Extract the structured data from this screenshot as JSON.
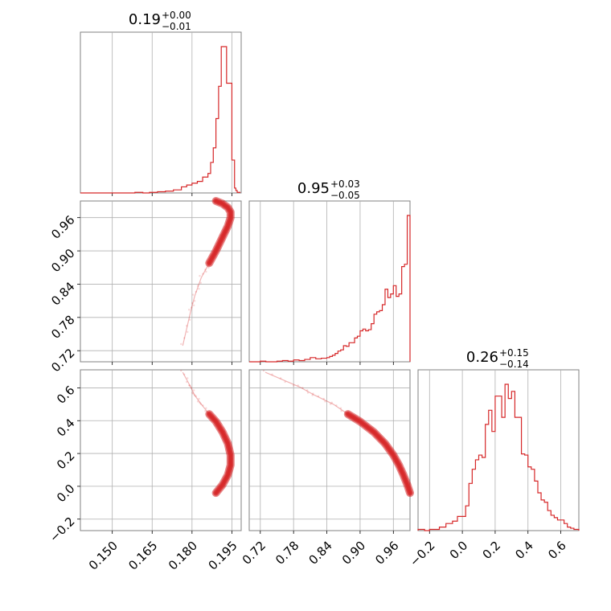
{
  "chart_data": {
    "type": "corner",
    "color": "#d62728",
    "parameters": [
      {
        "index": 0,
        "range": [
          0.138,
          0.1985
        ],
        "ticks": [
          0.15,
          0.165,
          0.18,
          0.195
        ],
        "tick_labels": [
          "0.150",
          "0.165",
          "0.180",
          "0.195"
        ],
        "title": {
          "value": "0.19",
          "plus": "+0.00",
          "minus": "−0.01"
        }
      },
      {
        "index": 1,
        "range": [
          0.7,
          0.99
        ],
        "ticks": [
          0.72,
          0.78,
          0.84,
          0.9,
          0.96
        ],
        "tick_labels": [
          "0.72",
          "0.78",
          "0.84",
          "0.90",
          "0.96"
        ],
        "title": {
          "value": "0.95",
          "plus": "+0.03",
          "minus": "−0.05"
        }
      },
      {
        "index": 2,
        "range": [
          -0.27,
          0.71
        ],
        "ticks": [
          -0.2,
          0.0,
          0.2,
          0.4,
          0.6
        ],
        "tick_labels": [
          "−0.2",
          "0.0",
          "0.2",
          "0.4",
          "0.6"
        ],
        "title": {
          "value": "0.26",
          "plus": "+0.15",
          "minus": "−0.14"
        }
      }
    ],
    "histograms": [
      {
        "param": 0,
        "edges": [
          0.138,
          0.1585,
          0.1615,
          0.164,
          0.167,
          0.17,
          0.173,
          0.176,
          0.178,
          0.18,
          0.182,
          0.184,
          0.186,
          0.187,
          0.188,
          0.189,
          0.19,
          0.191,
          0.192,
          0.193,
          0.194,
          0.195,
          0.196,
          0.1965,
          0.197,
          0.198
        ],
        "counts": [
          0,
          1,
          0,
          1,
          2,
          3,
          5,
          10,
          13,
          16,
          19,
          26,
          32,
          50,
          74,
          122,
          175,
          240,
          240,
          180,
          180,
          54,
          8,
          4,
          1
        ]
      },
      {
        "param": 1,
        "edges": [
          0.7,
          0.72,
          0.73,
          0.75,
          0.76,
          0.77,
          0.78,
          0.79,
          0.8,
          0.81,
          0.82,
          0.83,
          0.84,
          0.845,
          0.85,
          0.855,
          0.86,
          0.865,
          0.87,
          0.875,
          0.88,
          0.885,
          0.89,
          0.895,
          0.9,
          0.905,
          0.91,
          0.915,
          0.92,
          0.925,
          0.93,
          0.935,
          0.94,
          0.945,
          0.95,
          0.955,
          0.96,
          0.965,
          0.97,
          0.975,
          0.98,
          0.985,
          0.99
        ],
        "counts": [
          0,
          1,
          0,
          1,
          2,
          1,
          3,
          2,
          4,
          7,
          5,
          6,
          7,
          9,
          11,
          14,
          18,
          20,
          27,
          26,
          32,
          32,
          40,
          43,
          52,
          55,
          52,
          54,
          64,
          80,
          84,
          86,
          96,
          122,
          108,
          114,
          128,
          110,
          114,
          160,
          164,
          246
        ]
      },
      {
        "param": 2,
        "edges": [
          -0.27,
          -0.23,
          -0.2,
          -0.14,
          -0.1,
          -0.06,
          -0.03,
          -0.01,
          0.02,
          0.04,
          0.06,
          0.08,
          0.1,
          0.12,
          0.14,
          0.16,
          0.18,
          0.2,
          0.22,
          0.24,
          0.26,
          0.28,
          0.3,
          0.32,
          0.34,
          0.36,
          0.38,
          0.4,
          0.42,
          0.44,
          0.46,
          0.48,
          0.5,
          0.52,
          0.54,
          0.56,
          0.58,
          0.6,
          0.62,
          0.64,
          0.66,
          0.68,
          0.71
        ],
        "counts": [
          1,
          0,
          1,
          3,
          6,
          8,
          12,
          12,
          21,
          40,
          52,
          60,
          64,
          62,
          90,
          102,
          84,
          114,
          114,
          96,
          124,
          112,
          118,
          96,
          96,
          65,
          64,
          54,
          52,
          42,
          32,
          26,
          24,
          17,
          13,
          11,
          9,
          9,
          6,
          3,
          2,
          1
        ]
      }
    ],
    "curves": [
      {
        "name": "ridge",
        "points": [
          {
            "a": 0.1765,
            "b": 0.729,
            "c": 0.695
          },
          {
            "a": 0.1795,
            "b": 0.791,
            "c": 0.605
          },
          {
            "a": 0.181,
            "b": 0.818,
            "c": 0.555
          },
          {
            "a": 0.1835,
            "b": 0.852,
            "c": 0.5
          },
          {
            "a": 0.1865,
            "b": 0.878,
            "c": 0.44
          },
          {
            "a": 0.189,
            "b": 0.9,
            "c": 0.395
          },
          {
            "a": 0.1915,
            "b": 0.925,
            "c": 0.33
          },
          {
            "a": 0.1935,
            "b": 0.945,
            "c": 0.26
          },
          {
            "a": 0.1945,
            "b": 0.96,
            "c": 0.19
          },
          {
            "a": 0.1945,
            "b": 0.97,
            "c": 0.13
          },
          {
            "a": 0.1935,
            "b": 0.978,
            "c": 0.07
          },
          {
            "a": 0.1915,
            "b": 0.985,
            "c": 0.01
          },
          {
            "a": 0.189,
            "b": 0.99,
            "c": -0.04
          }
        ]
      }
    ]
  }
}
